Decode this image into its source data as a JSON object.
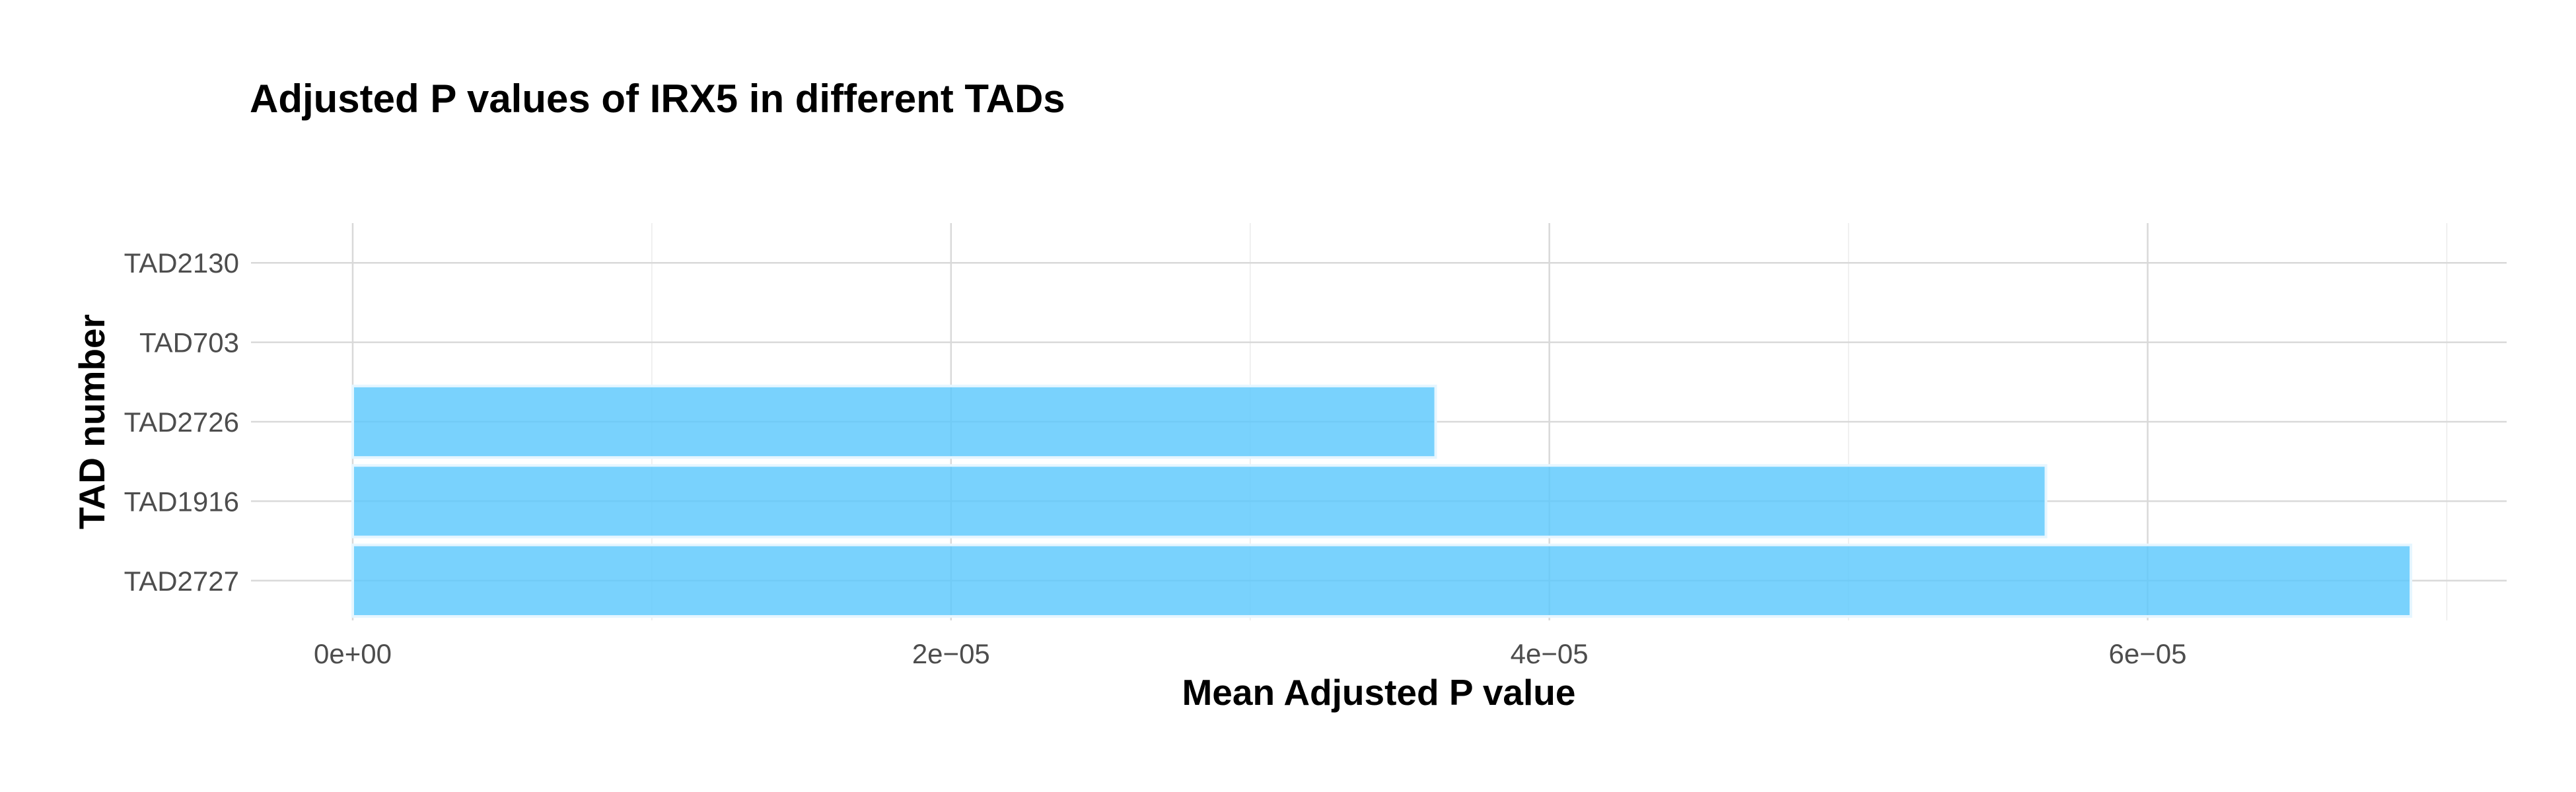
{
  "chart_data": {
    "type": "bar",
    "orientation": "horizontal",
    "title": "Adjusted P values of IRX5 in different TADs",
    "xlabel": "Mean Adjusted P value",
    "ylabel": "TAD number",
    "categories": [
      "TAD2727",
      "TAD1916",
      "TAD2726",
      "TAD703",
      "TAD2130"
    ],
    "values": [
      6.88e-05,
      5.66e-05,
      3.62e-05,
      0,
      0
    ],
    "xlim": [
      -3.4e-06,
      7.2e-05
    ],
    "x_ticks": [
      0,
      2e-05,
      4e-05,
      6e-05
    ],
    "x_tick_labels": [
      "0e+00",
      "2e−05",
      "4e−05",
      "6e−05"
    ],
    "grid": true,
    "bar_color": "#5bc8fc",
    "bar_opacity": 0.82,
    "bar_outline_color": "#e6f6ff"
  }
}
